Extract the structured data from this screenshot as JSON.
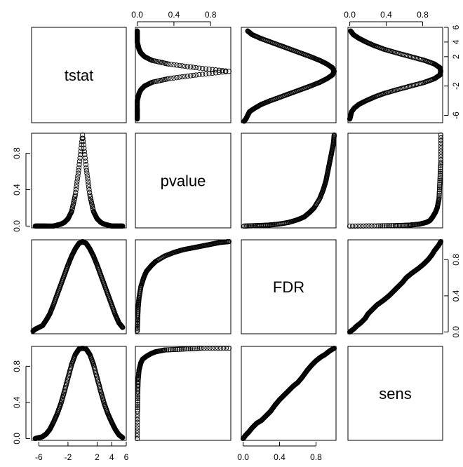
{
  "chart_data": {
    "type": "scatter",
    "variables": [
      "tstat",
      "pvalue",
      "FDR",
      "sens"
    ],
    "axes": {
      "tstat": {
        "range": [
          -7,
          6
        ],
        "ticks": [
          -6,
          -2,
          2,
          4,
          6
        ],
        "tick_labels": [
          "-6",
          "-2",
          "2",
          "4",
          "6"
        ]
      },
      "pvalue": {
        "range": [
          -0.02,
          1.02
        ],
        "ticks": [
          0.0,
          0.4,
          0.8
        ],
        "tick_labels": [
          "0.0",
          "0.4",
          "0.8"
        ]
      },
      "FDR": {
        "range": [
          -0.02,
          1.02
        ],
        "ticks": [
          0.0,
          0.4,
          0.8
        ],
        "tick_labels": [
          "0.0",
          "0.4",
          "0.8"
        ]
      },
      "sens": {
        "range": [
          -0.02,
          1.02
        ],
        "ticks": [
          0.0,
          0.4,
          0.8
        ],
        "tick_labels": [
          "0.0",
          "0.4",
          "0.8"
        ]
      }
    },
    "tick_sides": {
      "top": [
        "pvalue",
        "sens"
      ],
      "bottom": [
        "tstat",
        "FDR"
      ],
      "left": [
        "pvalue",
        "sens"
      ],
      "right": [
        "tstat",
        "FDR"
      ]
    },
    "point_style": "open-circle",
    "point_color": "#000000",
    "grid": false,
    "relationships": {
      "pvalue_vs_tstat": [
        [
          -6.5,
          0.0
        ],
        [
          -6.0,
          0.0
        ],
        [
          -5.5,
          0.0
        ],
        [
          -5.0,
          0.0
        ],
        [
          -4.0,
          0.0
        ],
        [
          -3.5,
          0.01
        ],
        [
          -3.0,
          0.02
        ],
        [
          -2.5,
          0.04
        ],
        [
          -2.0,
          0.08
        ],
        [
          -1.5,
          0.16
        ],
        [
          -1.0,
          0.34
        ],
        [
          -0.5,
          0.64
        ],
        [
          0.0,
          1.0
        ],
        [
          0.5,
          0.64
        ],
        [
          1.0,
          0.34
        ],
        [
          1.5,
          0.16
        ],
        [
          2.0,
          0.08
        ],
        [
          2.5,
          0.04
        ],
        [
          3.0,
          0.02
        ],
        [
          3.5,
          0.01
        ],
        [
          4.0,
          0.0
        ],
        [
          4.5,
          0.0
        ],
        [
          5.0,
          0.0
        ],
        [
          5.5,
          0.0
        ]
      ],
      "FDR_vs_tstat": [
        [
          -6.8,
          0.01
        ],
        [
          -6.5,
          0.03
        ],
        [
          -6.0,
          0.05
        ],
        [
          -5.5,
          0.07
        ],
        [
          -5.0,
          0.13
        ],
        [
          -4.5,
          0.2
        ],
        [
          -4.0,
          0.3
        ],
        [
          -3.5,
          0.41
        ],
        [
          -3.0,
          0.52
        ],
        [
          -2.5,
          0.63
        ],
        [
          -2.0,
          0.74
        ],
        [
          -1.5,
          0.84
        ],
        [
          -1.0,
          0.92
        ],
        [
          -0.5,
          0.98
        ],
        [
          0.0,
          1.0
        ],
        [
          0.5,
          0.98
        ],
        [
          1.0,
          0.92
        ],
        [
          1.5,
          0.84
        ],
        [
          2.0,
          0.74
        ],
        [
          2.5,
          0.63
        ],
        [
          3.0,
          0.52
        ],
        [
          3.5,
          0.41
        ],
        [
          4.0,
          0.3
        ],
        [
          4.5,
          0.19
        ],
        [
          5.0,
          0.1
        ],
        [
          5.5,
          0.05
        ]
      ],
      "sens_vs_tstat": [
        [
          -6.5,
          0.0
        ],
        [
          -6.0,
          0.01
        ],
        [
          -5.5,
          0.02
        ],
        [
          -5.0,
          0.05
        ],
        [
          -4.5,
          0.1
        ],
        [
          -4.0,
          0.18
        ],
        [
          -3.5,
          0.27
        ],
        [
          -3.0,
          0.38
        ],
        [
          -2.5,
          0.52
        ],
        [
          -2.0,
          0.67
        ],
        [
          -1.5,
          0.82
        ],
        [
          -1.0,
          0.93
        ],
        [
          -0.5,
          0.99
        ],
        [
          0.0,
          1.0
        ],
        [
          0.5,
          0.99
        ],
        [
          1.0,
          0.93
        ],
        [
          1.5,
          0.82
        ],
        [
          2.0,
          0.67
        ],
        [
          2.5,
          0.52
        ],
        [
          3.0,
          0.38
        ],
        [
          3.5,
          0.27
        ],
        [
          4.0,
          0.18
        ],
        [
          4.5,
          0.1
        ],
        [
          5.0,
          0.04
        ],
        [
          5.5,
          0.01
        ]
      ],
      "FDR_vs_pvalue": [
        [
          0.0,
          0.01
        ],
        [
          0.005,
          0.15
        ],
        [
          0.01,
          0.27
        ],
        [
          0.02,
          0.38
        ],
        [
          0.04,
          0.5
        ],
        [
          0.07,
          0.6
        ],
        [
          0.1,
          0.67
        ],
        [
          0.15,
          0.73
        ],
        [
          0.2,
          0.78
        ],
        [
          0.3,
          0.84
        ],
        [
          0.4,
          0.88
        ],
        [
          0.5,
          0.91
        ],
        [
          0.6,
          0.93
        ],
        [
          0.7,
          0.95
        ],
        [
          0.8,
          0.97
        ],
        [
          0.9,
          0.99
        ],
        [
          1.0,
          1.0
        ]
      ],
      "sens_vs_pvalue": [
        [
          0.0,
          0.0
        ],
        [
          0.002,
          0.3
        ],
        [
          0.005,
          0.5
        ],
        [
          0.01,
          0.65
        ],
        [
          0.02,
          0.76
        ],
        [
          0.04,
          0.84
        ],
        [
          0.06,
          0.88
        ],
        [
          0.1,
          0.91
        ],
        [
          0.15,
          0.94
        ],
        [
          0.2,
          0.96
        ],
        [
          0.3,
          0.98
        ],
        [
          0.5,
          0.99
        ],
        [
          0.7,
          1.0
        ],
        [
          1.0,
          1.0
        ]
      ],
      "sens_vs_FDR": [
        [
          0.0,
          0.0
        ],
        [
          0.03,
          0.04
        ],
        [
          0.06,
          0.07
        ],
        [
          0.1,
          0.12
        ],
        [
          0.15,
          0.17
        ],
        [
          0.2,
          0.2
        ],
        [
          0.25,
          0.25
        ],
        [
          0.3,
          0.3
        ],
        [
          0.35,
          0.37
        ],
        [
          0.4,
          0.43
        ],
        [
          0.45,
          0.48
        ],
        [
          0.5,
          0.53
        ],
        [
          0.55,
          0.58
        ],
        [
          0.6,
          0.62
        ],
        [
          0.65,
          0.68
        ],
        [
          0.7,
          0.75
        ],
        [
          0.75,
          0.81
        ],
        [
          0.8,
          0.86
        ],
        [
          0.85,
          0.9
        ],
        [
          0.9,
          0.93
        ],
        [
          0.95,
          0.97
        ],
        [
          1.0,
          1.0
        ]
      ]
    }
  }
}
